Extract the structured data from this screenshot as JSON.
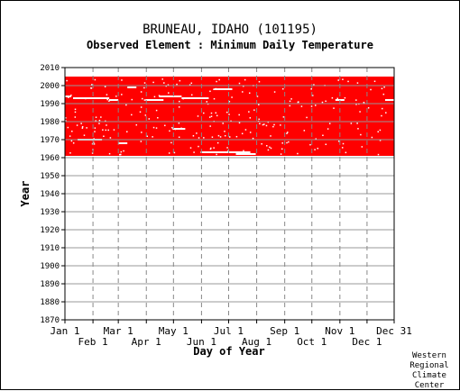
{
  "header": {
    "title": "BRUNEAU, IDAHO   (101195)",
    "subtitle": "Observed Element : Minimum Daily Temperature"
  },
  "credit": [
    "Western",
    "Regional",
    "Climate",
    "Center"
  ],
  "chart_data": {
    "type": "heatmap",
    "title": "BRUNEAU, IDAHO   (101195)",
    "subtitle": "Observed Element : Minimum Daily Temperature",
    "xlabel": "Day of Year",
    "ylabel": "Year",
    "xlim": [
      1,
      365
    ],
    "ylim": [
      1870,
      2010
    ],
    "x_ticks_upper": [
      {
        "label": "Jan 1",
        "day": 1
      },
      {
        "label": "Mar 1",
        "day": 60
      },
      {
        "label": "May 1",
        "day": 121
      },
      {
        "label": "Jul 1",
        "day": 182
      },
      {
        "label": "Sep 1",
        "day": 244
      },
      {
        "label": "Nov 1",
        "day": 305
      },
      {
        "label": "Dec 31",
        "day": 365
      }
    ],
    "x_ticks_lower": [
      {
        "label": "Feb 1",
        "day": 32
      },
      {
        "label": "Apr 1",
        "day": 91
      },
      {
        "label": "Jun 1",
        "day": 152
      },
      {
        "label": "Aug 1",
        "day": 213
      },
      {
        "label": "Oct 1",
        "day": 274
      },
      {
        "label": "Dec 1",
        "day": 335
      }
    ],
    "y_ticks": [
      1870,
      1880,
      1890,
      1900,
      1910,
      1920,
      1930,
      1940,
      1950,
      1960,
      1970,
      1980,
      1990,
      2000,
      2010
    ],
    "grid": true,
    "observed_color": "#ff0000",
    "observed_years": [
      1961,
      2005
    ],
    "missing_segments": [
      {
        "year": 1994,
        "start_day": 1,
        "end_day": 8
      },
      {
        "year": 1993,
        "start_day": 10,
        "end_day": 50
      },
      {
        "year": 1992,
        "start_day": 50,
        "end_day": 60
      },
      {
        "year": 1992,
        "start_day": 90,
        "end_day": 110
      },
      {
        "year": 1994,
        "start_day": 105,
        "end_day": 130
      },
      {
        "year": 1993,
        "start_day": 130,
        "end_day": 160
      },
      {
        "year": 1998,
        "start_day": 166,
        "end_day": 186
      },
      {
        "year": 1970,
        "start_day": 15,
        "end_day": 42
      },
      {
        "year": 1976,
        "start_day": 120,
        "end_day": 134
      },
      {
        "year": 1963,
        "start_day": 151,
        "end_day": 206
      },
      {
        "year": 1962,
        "start_day": 190,
        "end_day": 212
      },
      {
        "year": 1992,
        "start_day": 300,
        "end_day": 310
      },
      {
        "year": 1992,
        "start_day": 355,
        "end_day": 365
      },
      {
        "year": 1999,
        "start_day": 70,
        "end_day": 80
      },
      {
        "year": 1968,
        "start_day": 60,
        "end_day": 70
      }
    ]
  }
}
